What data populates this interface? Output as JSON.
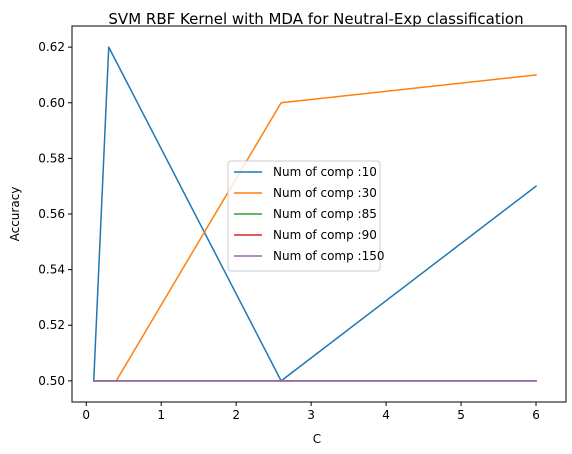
{
  "chart_data": {
    "type": "line",
    "title": "SVM RBF Kernel with MDA for Neutral-Exp classification",
    "xlabel": "C",
    "ylabel": "Accuracy",
    "xlim": [
      -0.19,
      6.4
    ],
    "ylim": [
      0.4924,
      0.6276
    ],
    "xticks": [
      0,
      1,
      2,
      3,
      4,
      5,
      6
    ],
    "yticks": [
      0.5,
      0.52,
      0.54,
      0.56,
      0.58,
      0.6,
      0.62
    ],
    "xtick_labels": [
      "0",
      "1",
      "2",
      "3",
      "4",
      "5",
      "6"
    ],
    "ytick_labels": [
      "0.50",
      "0.52",
      "0.54",
      "0.56",
      "0.58",
      "0.60",
      "0.62"
    ],
    "grid": false,
    "legend_position": "center",
    "series": [
      {
        "name": "Num of comp :10",
        "color": "#1f77b4",
        "x": [
          0.1,
          0.3,
          2.6,
          6.0
        ],
        "y": [
          0.5,
          0.62,
          0.5,
          0.57
        ]
      },
      {
        "name": "Num of comp :30",
        "color": "#ff7f0e",
        "x": [
          0.1,
          0.4,
          2.6,
          6.0
        ],
        "y": [
          0.5,
          0.5,
          0.6,
          0.61
        ]
      },
      {
        "name": "Num of comp :85",
        "color": "#2ca02c",
        "x": [
          0.1,
          0.4,
          2.6,
          6.0
        ],
        "y": [
          0.5,
          0.5,
          0.5,
          0.5
        ]
      },
      {
        "name": "Num of comp :90",
        "color": "#d62728",
        "x": [
          0.1,
          0.4,
          2.6,
          6.0
        ],
        "y": [
          0.5,
          0.5,
          0.5,
          0.5
        ]
      },
      {
        "name": "Num of comp :150",
        "color": "#9467bd",
        "x": [
          0.1,
          0.4,
          2.6,
          6.0
        ],
        "y": [
          0.5,
          0.5,
          0.5,
          0.5
        ]
      }
    ]
  }
}
